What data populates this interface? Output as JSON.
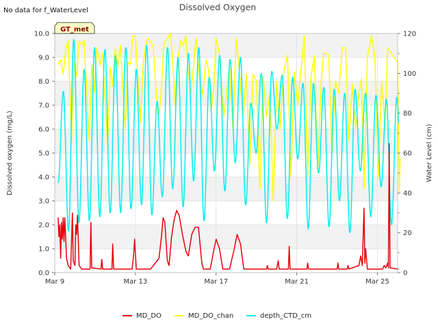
{
  "chart_data": {
    "type": "line",
    "title": "Dissolved Oxygen",
    "note": "No data for f_WaterLevel",
    "site_label": "GT_met",
    "ylabel": "Dissolved oxygen (mg/L)",
    "y2label": "Water Level (cm)",
    "xlim": [
      "2024-03-09",
      "2024-03-26"
    ],
    "ylim": [
      0,
      10
    ],
    "y2lim": [
      0,
      120
    ],
    "x_ticks": [
      {
        "date": "2024-03-09",
        "label": "Mar 9"
      },
      {
        "date": "2024-03-13",
        "label": "Mar 13"
      },
      {
        "date": "2024-03-17",
        "label": "Mar 17"
      },
      {
        "date": "2024-03-21",
        "label": "Mar 21"
      },
      {
        "date": "2024-03-25",
        "label": "Mar 25"
      }
    ],
    "y_ticks": [
      "0.0",
      "1.0",
      "2.0",
      "3.0",
      "4.0",
      "5.0",
      "6.0",
      "7.0",
      "8.0",
      "9.0",
      "10.0"
    ],
    "y2_ticks": [
      "0",
      "20",
      "40",
      "60",
      "80",
      "100",
      "120"
    ],
    "grid": true,
    "legend_position": "bottom",
    "series": [
      {
        "name": "MD_DO",
        "axis": "left",
        "color": "#e8000b",
        "points": [
          [
            "2024-03-09 04:00",
            2.3
          ],
          [
            "2024-03-09 05:00",
            1.5
          ],
          [
            "2024-03-09 06:00",
            2.0
          ],
          [
            "2024-03-09 07:00",
            0.6
          ],
          [
            "2024-03-09 08:00",
            2.1
          ],
          [
            "2024-03-09 09:00",
            1.4
          ],
          [
            "2024-03-09 10:00",
            2.3
          ],
          [
            "2024-03-09 11:00",
            1.3
          ],
          [
            "2024-03-09 12:00",
            2.3
          ],
          [
            "2024-03-09 14:00",
            0.6
          ],
          [
            "2024-03-09 16:00",
            0.3
          ],
          [
            "2024-03-09 19:00",
            0.15
          ],
          [
            "2024-03-09 21:00",
            2.5
          ],
          [
            "2024-03-09 22:00",
            0.5
          ],
          [
            "2024-03-10 00:00",
            0.3
          ],
          [
            "2024-03-10 01:00",
            2.0
          ],
          [
            "2024-03-10 02:00",
            1.6
          ],
          [
            "2024-03-10 03:00",
            2.4
          ],
          [
            "2024-03-10 05:00",
            0.3
          ],
          [
            "2024-03-10 08:00",
            0.15
          ],
          [
            "2024-03-10 18:00",
            0.15
          ],
          [
            "2024-03-10 19:00",
            2.1
          ],
          [
            "2024-03-10 20:00",
            0.2
          ],
          [
            "2024-03-11 07:00",
            0.15
          ],
          [
            "2024-03-11 08:00",
            0.55
          ],
          [
            "2024-03-11 09:00",
            0.15
          ],
          [
            "2024-03-11 20:00",
            0.15
          ],
          [
            "2024-03-11 21:00",
            1.2
          ],
          [
            "2024-03-11 22:00",
            0.15
          ],
          [
            "2024-03-12 20:00",
            0.15
          ],
          [
            "2024-03-12 22:00",
            0.8
          ],
          [
            "2024-03-12 23:00",
            1.4
          ],
          [
            "2024-03-13 01:00",
            0.15
          ],
          [
            "2024-03-13 18:00",
            0.15
          ],
          [
            "2024-03-14 04:00",
            0.6
          ],
          [
            "2024-03-14 07:00",
            1.5
          ],
          [
            "2024-03-14 09:00",
            2.3
          ],
          [
            "2024-03-14 11:00",
            2.1
          ],
          [
            "2024-03-14 14:00",
            0.5
          ],
          [
            "2024-03-14 16:00",
            0.3
          ],
          [
            "2024-03-14 19:00",
            1.5
          ],
          [
            "2024-03-14 22:00",
            2.2
          ],
          [
            "2024-03-15 01:00",
            2.6
          ],
          [
            "2024-03-15 04:00",
            2.4
          ],
          [
            "2024-03-15 08:00",
            1.6
          ],
          [
            "2024-03-15 12:00",
            0.9
          ],
          [
            "2024-03-15 15:00",
            0.7
          ],
          [
            "2024-03-15 19:00",
            1.6
          ],
          [
            "2024-03-15 23:00",
            1.9
          ],
          [
            "2024-03-16 03:00",
            1.9
          ],
          [
            "2024-03-16 07:00",
            0.4
          ],
          [
            "2024-03-16 09:00",
            0.15
          ],
          [
            "2024-03-16 17:00",
            0.15
          ],
          [
            "2024-03-16 21:00",
            0.9
          ],
          [
            "2024-03-17 00:00",
            1.4
          ],
          [
            "2024-03-17 04:00",
            1.0
          ],
          [
            "2024-03-17 08:00",
            0.15
          ],
          [
            "2024-03-17 16:00",
            0.15
          ],
          [
            "2024-03-17 21:00",
            0.9
          ],
          [
            "2024-03-18 01:00",
            1.6
          ],
          [
            "2024-03-18 05:00",
            1.2
          ],
          [
            "2024-03-18 09:00",
            0.15
          ],
          [
            "2024-03-19 12:00",
            0.15
          ],
          [
            "2024-03-19 13:00",
            0.3
          ],
          [
            "2024-03-19 14:00",
            0.15
          ],
          [
            "2024-03-20 00:00",
            0.15
          ],
          [
            "2024-03-20 02:00",
            0.5
          ],
          [
            "2024-03-20 03:00",
            0.15
          ],
          [
            "2024-03-20 14:00",
            0.15
          ],
          [
            "2024-03-20 15:00",
            1.1
          ],
          [
            "2024-03-20 16:00",
            0.15
          ],
          [
            "2024-03-21 12:00",
            0.15
          ],
          [
            "2024-03-21 13:00",
            0.4
          ],
          [
            "2024-03-21 14:00",
            0.15
          ],
          [
            "2024-03-23 00:00",
            0.15
          ],
          [
            "2024-03-23 01:00",
            0.4
          ],
          [
            "2024-03-23 02:00",
            0.15
          ],
          [
            "2024-03-23 12:00",
            0.15
          ],
          [
            "2024-03-23 13:00",
            0.3
          ],
          [
            "2024-03-23 14:00",
            0.15
          ],
          [
            "2024-03-24 02:00",
            0.3
          ],
          [
            "2024-03-24 04:00",
            0.7
          ],
          [
            "2024-03-24 06:00",
            0.3
          ],
          [
            "2024-03-24 08:00",
            2.7
          ],
          [
            "2024-03-24 09:00",
            0.4
          ],
          [
            "2024-03-24 10:00",
            1.0
          ],
          [
            "2024-03-24 12:00",
            0.15
          ],
          [
            "2024-03-25 06:00",
            0.15
          ],
          [
            "2024-03-25 08:00",
            0.3
          ],
          [
            "2024-03-25 10:00",
            0.2
          ],
          [
            "2024-03-25 12:00",
            0.4
          ],
          [
            "2024-03-25 13:00",
            0.2
          ],
          [
            "2024-03-25 14:00",
            5.4
          ],
          [
            "2024-03-25 15:00",
            0.2
          ],
          [
            "2024-03-26 00:00",
            0.15
          ],
          [
            "2024-03-26 01:00",
            0.15
          ]
        ]
      },
      {
        "name": "MD_DO_chan",
        "axis": "left",
        "color": "#ffff00",
        "points": [
          [
            "2024-03-09 04:00",
            8.7
          ],
          [
            "2024-03-09 07:00",
            8.9
          ],
          [
            "2024-03-09 10:00",
            8.3
          ],
          [
            "2024-03-09 13:00",
            9.3
          ],
          [
            "2024-03-09 16:00",
            9.7
          ],
          [
            "2024-03-09 20:00",
            5.5
          ],
          [
            "2024-03-09 23:00",
            8.8
          ],
          [
            "2024-03-10 02:00",
            8.2
          ],
          [
            "2024-03-10 05:00",
            9.7
          ],
          [
            "2024-03-10 08:00",
            9.5
          ],
          [
            "2024-03-10 11:00",
            9.7
          ],
          [
            "2024-03-10 17:00",
            5.5
          ],
          [
            "2024-03-10 20:00",
            8.7
          ],
          [
            "2024-03-10 23:00",
            7.5
          ],
          [
            "2024-03-11 02:00",
            9.4
          ],
          [
            "2024-03-11 06:00",
            8.7
          ],
          [
            "2024-03-11 09:00",
            9.2
          ],
          [
            "2024-03-11 15:00",
            5.2
          ],
          [
            "2024-03-11 18:00",
            8.6
          ],
          [
            "2024-03-11 21:00",
            7.8
          ],
          [
            "2024-03-12 00:00",
            9.4
          ],
          [
            "2024-03-12 03:00",
            8.6
          ],
          [
            "2024-03-12 06:00",
            9.5
          ],
          [
            "2024-03-12 12:00",
            6.0
          ],
          [
            "2024-03-12 15:00",
            8.8
          ],
          [
            "2024-03-12 18:00",
            8.7
          ],
          [
            "2024-03-12 21:00",
            9.9
          ],
          [
            "2024-03-13 00:00",
            9.9
          ],
          [
            "2024-03-13 06:00",
            6.3
          ],
          [
            "2024-03-13 09:00",
            8.6
          ],
          [
            "2024-03-13 12:00",
            9.5
          ],
          [
            "2024-03-13 15:00",
            9.8
          ],
          [
            "2024-03-13 21:00",
            9.5
          ],
          [
            "2024-03-14 03:00",
            6.4
          ],
          [
            "2024-03-14 06:00",
            7.2
          ],
          [
            "2024-03-14 10:00",
            9.6
          ],
          [
            "2024-03-14 14:00",
            9.8
          ],
          [
            "2024-03-14 18:00",
            10.0
          ],
          [
            "2024-03-15 00:00",
            6.8
          ],
          [
            "2024-03-15 03:00",
            9.0
          ],
          [
            "2024-03-15 06:00",
            9.7
          ],
          [
            "2024-03-15 09:00",
            9.5
          ],
          [
            "2024-03-15 12:00",
            9.9
          ],
          [
            "2024-03-15 15:00",
            8.4
          ],
          [
            "2024-03-15 18:00",
            7.5
          ],
          [
            "2024-03-15 21:00",
            8.6
          ],
          [
            "2024-03-16 00:00",
            9.8
          ],
          [
            "2024-03-16 03:00",
            8.7
          ],
          [
            "2024-03-16 06:00",
            7.2
          ],
          [
            "2024-03-16 09:00",
            7.8
          ],
          [
            "2024-03-16 12:00",
            8.9
          ],
          [
            "2024-03-16 15:00",
            8.5
          ],
          [
            "2024-03-16 18:00",
            6.8
          ],
          [
            "2024-03-16 21:00",
            7.6
          ],
          [
            "2024-03-17 00:00",
            9.8
          ],
          [
            "2024-03-17 04:00",
            9.1
          ],
          [
            "2024-03-17 09:00",
            6.5
          ],
          [
            "2024-03-17 13:00",
            7.7
          ],
          [
            "2024-03-17 16:00",
            8.6
          ],
          [
            "2024-03-17 20:00",
            6.0
          ],
          [
            "2024-03-18 00:00",
            9.8
          ],
          [
            "2024-03-18 04:00",
            8.3
          ],
          [
            "2024-03-18 08:00",
            6.5
          ],
          [
            "2024-03-18 12:00",
            8.3
          ],
          [
            "2024-03-18 16:00",
            4.5
          ],
          [
            "2024-03-18 20:00",
            8.3
          ],
          [
            "2024-03-19 00:00",
            8.0
          ],
          [
            "2024-03-19 04:00",
            3.5
          ],
          [
            "2024-03-19 08:00",
            8.2
          ],
          [
            "2024-03-19 12:00",
            6.5
          ],
          [
            "2024-03-19 16:00",
            7.5
          ],
          [
            "2024-03-19 20:00",
            3.0
          ],
          [
            "2024-03-20 00:00",
            8.0
          ],
          [
            "2024-03-20 04:00",
            6.0
          ],
          [
            "2024-03-20 08:00",
            8.3
          ],
          [
            "2024-03-20 13:00",
            9.1
          ],
          [
            "2024-03-20 17:00",
            4.0
          ],
          [
            "2024-03-20 21:00",
            8.4
          ],
          [
            "2024-03-21 01:00",
            7.0
          ],
          [
            "2024-03-21 05:00",
            8.5
          ],
          [
            "2024-03-21 09:00",
            9.9
          ],
          [
            "2024-03-21 13:00",
            4.0
          ],
          [
            "2024-03-21 17:00",
            8.2
          ],
          [
            "2024-03-21 21:00",
            9.1
          ],
          [
            "2024-03-22 01:00",
            4.2
          ],
          [
            "2024-03-22 05:00",
            8.0
          ],
          [
            "2024-03-22 08:00",
            9.2
          ],
          [
            "2024-03-22 14:00",
            9.1
          ],
          [
            "2024-03-22 18:00",
            5.0
          ],
          [
            "2024-03-22 22:00",
            8.0
          ],
          [
            "2024-03-23 02:00",
            7.5
          ],
          [
            "2024-03-23 06:00",
            9.4
          ],
          [
            "2024-03-23 10:00",
            9.4
          ],
          [
            "2024-03-23 14:00",
            5.5
          ],
          [
            "2024-03-23 18:00",
            7.9
          ],
          [
            "2024-03-23 22:00",
            6.0
          ],
          [
            "2024-03-24 02:00",
            7.5
          ],
          [
            "2024-03-24 05:00",
            8.1
          ],
          [
            "2024-03-24 08:00",
            3.5
          ],
          [
            "2024-03-24 12:00",
            9.0
          ],
          [
            "2024-03-24 17:00",
            9.9
          ],
          [
            "2024-03-24 21:00",
            9.0
          ],
          [
            "2024-03-25 01:00",
            4.0
          ],
          [
            "2024-03-25 05:00",
            8.0
          ],
          [
            "2024-03-25 09:00",
            6.0
          ],
          [
            "2024-03-25 12:00",
            9.4
          ],
          [
            "2024-03-26 00:00",
            8.8
          ],
          [
            "2024-03-26 02:00",
            3.4
          ],
          [
            "2024-03-26 03:00",
            4.8
          ]
        ]
      },
      {
        "name": "depth_CTD_cm",
        "axis": "right",
        "color": "#00eeee",
        "cycle_hours": 12.4,
        "start": "2024-03-09 04:00",
        "end": "2024-03-26 01:00",
        "first_phase": "rising",
        "peaks": [
          91,
          117,
          102,
          113,
          112,
          109,
          113,
          102,
          114,
          86,
          113,
          108,
          110,
          113,
          98,
          109,
          107,
          108,
          85,
          100,
          101,
          99,
          98,
          95,
          95,
          93,
          92,
          90,
          92,
          90,
          89,
          87,
          88,
          88,
          96,
          98,
          100,
          104,
          96,
          99,
          99,
          101
        ],
        "troughs": [
          26,
          21,
          25,
          26,
          28,
          30,
          30,
          32,
          34,
          29,
          38,
          42,
          33,
          46,
          26,
          51,
          41,
          55,
          34,
          60,
          25,
          72,
          27,
          57,
          22,
          50,
          23,
          36,
          20,
          51,
          28,
          43,
          24,
          34,
          23,
          33,
          25,
          34,
          24,
          30,
          22,
          22
        ]
      }
    ]
  }
}
